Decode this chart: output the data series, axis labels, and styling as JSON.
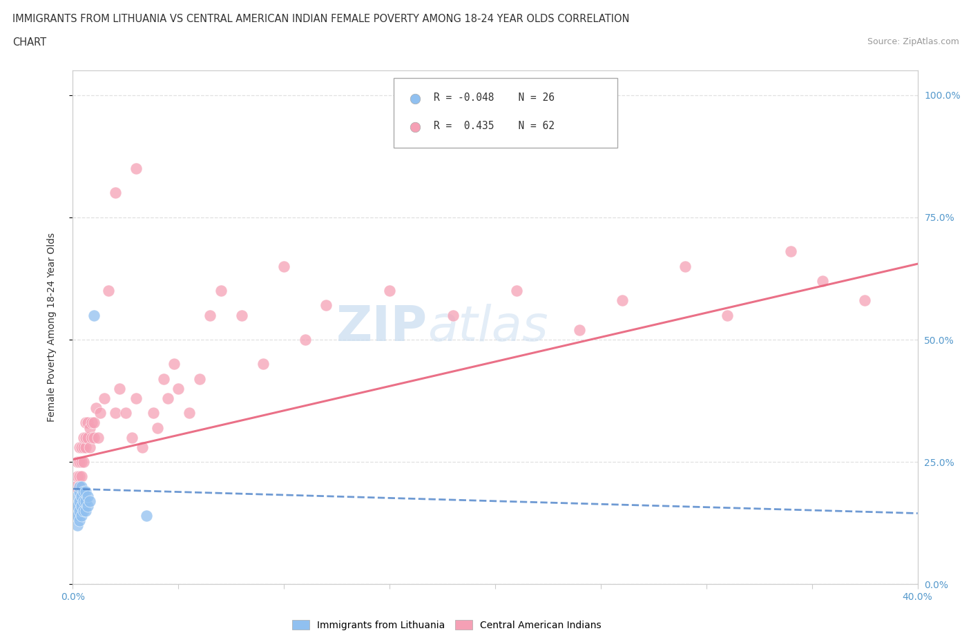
{
  "title_line1": "IMMIGRANTS FROM LITHUANIA VS CENTRAL AMERICAN INDIAN FEMALE POVERTY AMONG 18-24 YEAR OLDS CORRELATION",
  "title_line2": "CHART",
  "source": "Source: ZipAtlas.com",
  "ylabel": "Female Poverty Among 18-24 Year Olds",
  "xlim": [
    0.0,
    0.4
  ],
  "ylim": [
    0.0,
    1.05
  ],
  "color_blue": "#90C0F0",
  "color_pink": "#F5A0B5",
  "color_blue_line": "#5588CC",
  "color_pink_line": "#E8607A",
  "watermark_color": "#C8DCF0",
  "blue_x": [
    0.001,
    0.001,
    0.002,
    0.002,
    0.002,
    0.002,
    0.003,
    0.003,
    0.003,
    0.003,
    0.003,
    0.004,
    0.004,
    0.004,
    0.004,
    0.005,
    0.005,
    0.005,
    0.006,
    0.006,
    0.006,
    0.007,
    0.007,
    0.008,
    0.01,
    0.035
  ],
  "blue_y": [
    0.14,
    0.16,
    0.12,
    0.14,
    0.16,
    0.18,
    0.13,
    0.15,
    0.17,
    0.19,
    0.2,
    0.14,
    0.16,
    0.18,
    0.2,
    0.15,
    0.17,
    0.19,
    0.15,
    0.17,
    0.19,
    0.16,
    0.18,
    0.17,
    0.55,
    0.14
  ],
  "pink_x": [
    0.001,
    0.002,
    0.002,
    0.003,
    0.003,
    0.003,
    0.003,
    0.004,
    0.004,
    0.004,
    0.005,
    0.005,
    0.005,
    0.006,
    0.006,
    0.006,
    0.007,
    0.007,
    0.008,
    0.008,
    0.009,
    0.009,
    0.01,
    0.01,
    0.011,
    0.012,
    0.013,
    0.015,
    0.017,
    0.02,
    0.022,
    0.025,
    0.028,
    0.03,
    0.033,
    0.038,
    0.04,
    0.043,
    0.045,
    0.048,
    0.05,
    0.055,
    0.06,
    0.065,
    0.07,
    0.08,
    0.09,
    0.1,
    0.11,
    0.12,
    0.15,
    0.18,
    0.21,
    0.24,
    0.26,
    0.29,
    0.31,
    0.34,
    0.355,
    0.375,
    0.02,
    0.03
  ],
  "pink_y": [
    0.2,
    0.22,
    0.25,
    0.2,
    0.22,
    0.25,
    0.28,
    0.22,
    0.25,
    0.28,
    0.25,
    0.28,
    0.3,
    0.28,
    0.3,
    0.33,
    0.3,
    0.33,
    0.28,
    0.32,
    0.3,
    0.33,
    0.3,
    0.33,
    0.36,
    0.3,
    0.35,
    0.38,
    0.6,
    0.35,
    0.4,
    0.35,
    0.3,
    0.38,
    0.28,
    0.35,
    0.32,
    0.42,
    0.38,
    0.45,
    0.4,
    0.35,
    0.42,
    0.55,
    0.6,
    0.55,
    0.45,
    0.65,
    0.5,
    0.57,
    0.6,
    0.55,
    0.6,
    0.52,
    0.58,
    0.65,
    0.55,
    0.68,
    0.62,
    0.58,
    0.8,
    0.85
  ],
  "pink_line_x0": 0.0,
  "pink_line_y0": 0.255,
  "pink_line_x1": 0.4,
  "pink_line_y1": 0.655,
  "blue_line_x0": 0.0,
  "blue_line_y0": 0.195,
  "blue_line_x1": 0.4,
  "blue_line_y1": 0.145
}
